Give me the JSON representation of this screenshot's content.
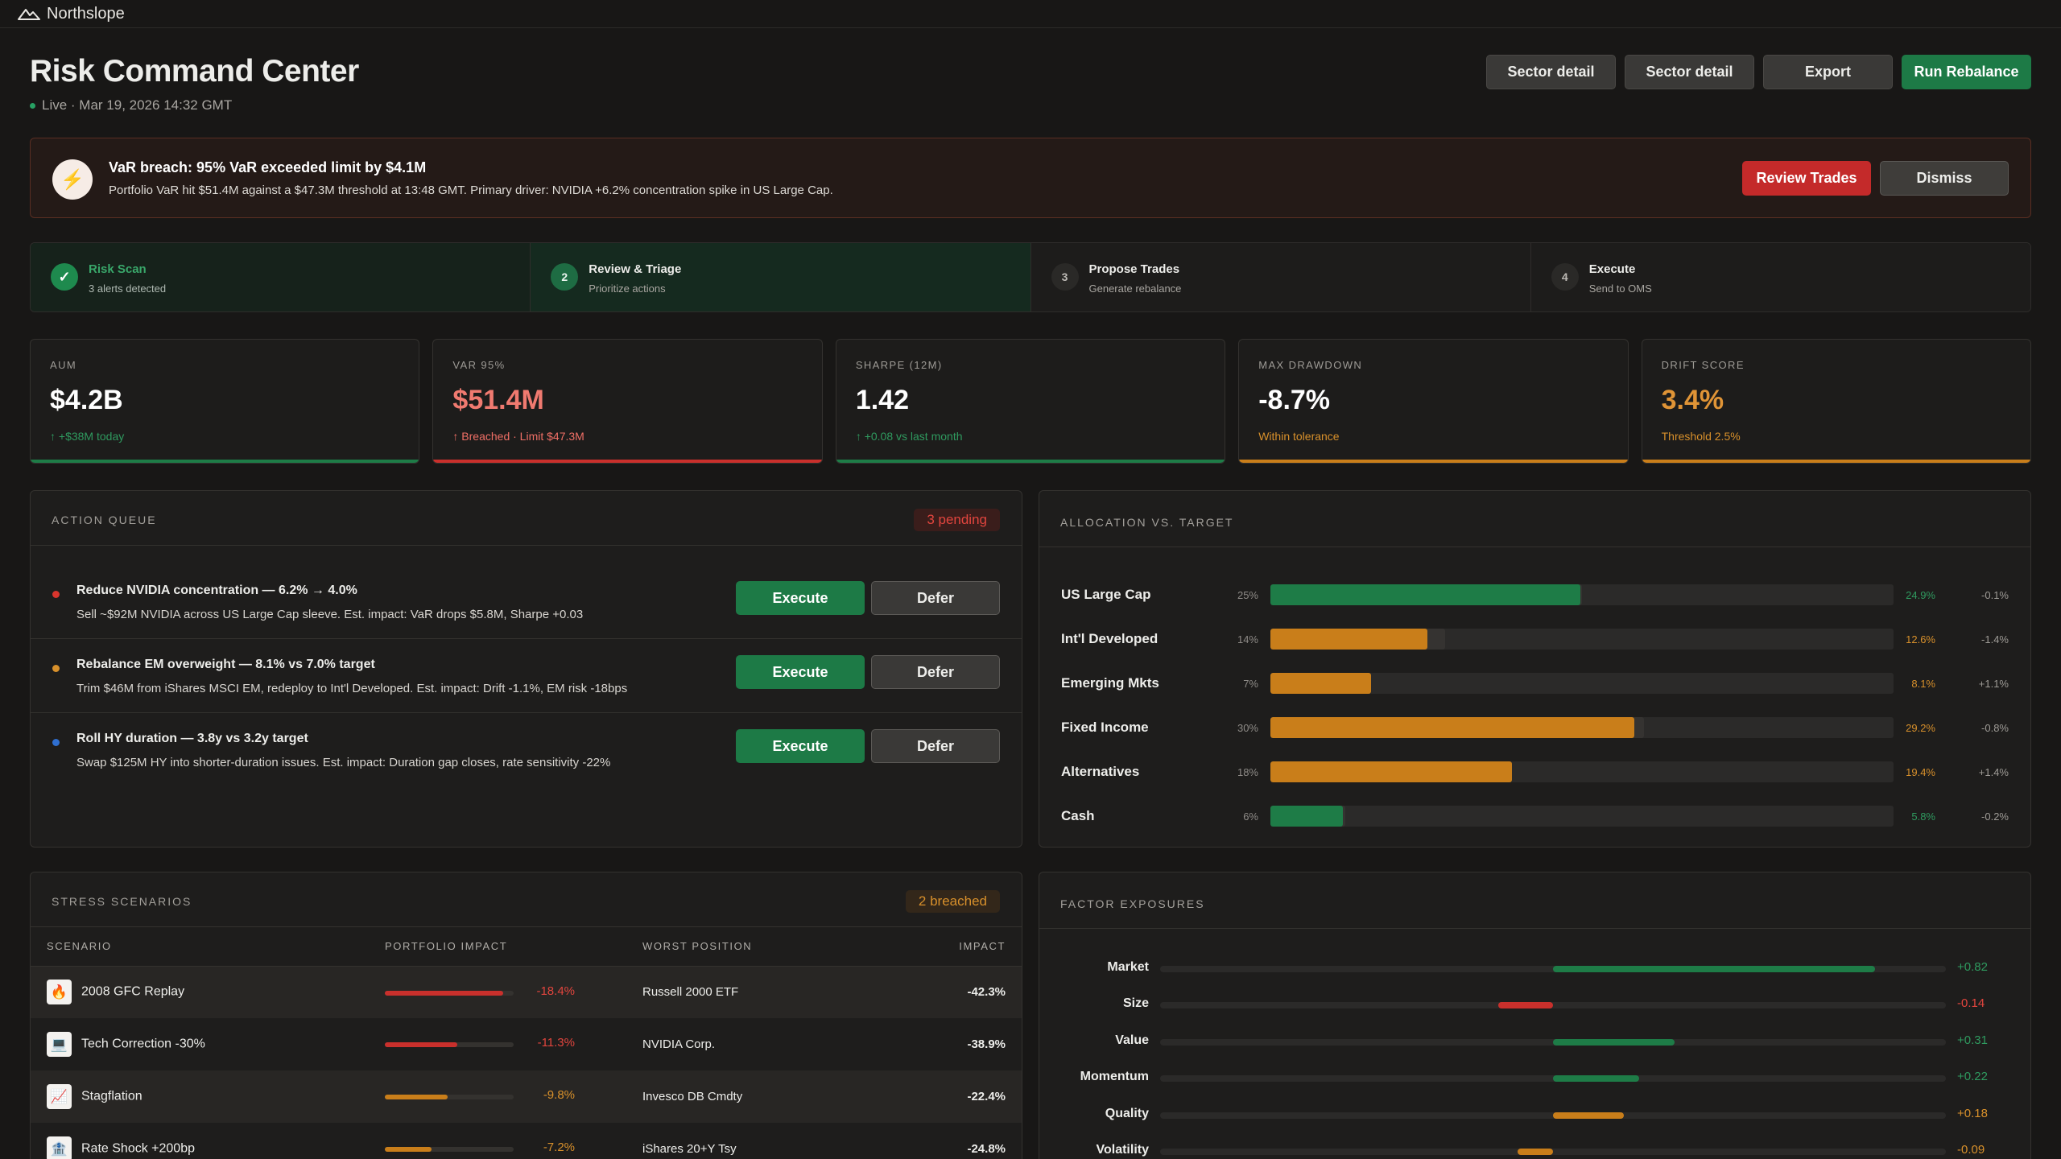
{
  "app": {
    "brand": "Northslope"
  },
  "header": {
    "title": "Risk Command Center",
    "subtitle": "Live · Mar 19, 2026 14:32 GMT",
    "buttons": {
      "sector_detail_1": "Sector detail",
      "sector_detail_2": "Sector detail",
      "export": "Export",
      "run_rebalance": "Run Rebalance"
    }
  },
  "alert": {
    "icon": "lightning-icon",
    "title": "VaR breach: 95% VaR exceeded limit by $4.1M",
    "text": "Portfolio VaR hit $51.4M against a $47.3M threshold at 13:48 GMT. Primary driver: NVIDIA +6.2% concentration spike in US Large Cap.",
    "review_label": "Review Trades",
    "dismiss_label": "Dismiss"
  },
  "steps": [
    {
      "marker": "✓",
      "title": "Risk Scan",
      "sub": "3 alerts detected",
      "state": "done"
    },
    {
      "marker": "2",
      "title": "Review & Triage",
      "sub": "Prioritize actions",
      "state": "active"
    },
    {
      "marker": "3",
      "title": "Propose Trades",
      "sub": "Generate rebalance",
      "state": "pending"
    },
    {
      "marker": "4",
      "title": "Execute",
      "sub": "Send to OMS",
      "state": "pending"
    }
  ],
  "kpis": [
    {
      "label": "AUM",
      "value": "$4.2B",
      "sub": "↑ +$38M today",
      "color": "#ffffff",
      "sub_color": "#2f9a5f",
      "bar_color": "#1e7c47"
    },
    {
      "label": "VAR 95%",
      "value": "$51.4M",
      "sub": "↑ Breached · Limit $47.3M",
      "color": "#f07a70",
      "sub_color": "#ef6f66",
      "bar_color": "#c9302c"
    },
    {
      "label": "SHARPE (12M)",
      "value": "1.42",
      "sub": "↑ +0.08 vs last month",
      "color": "#ffffff",
      "sub_color": "#2f9a5f",
      "bar_color": "#1e7c47"
    },
    {
      "label": "MAX DRAWDOWN",
      "value": "-8.7%",
      "sub": "Within tolerance",
      "color": "#ffffff",
      "sub_color": "#d8902b",
      "bar_color": "#c97e1a"
    },
    {
      "label": "DRIFT SCORE",
      "value": "3.4%",
      "sub": "Threshold 2.5%",
      "color": "#e09436",
      "sub_color": "#d8902b",
      "bar_color": "#c97e1a"
    }
  ],
  "action_queue": {
    "title": "ACTION QUEUE",
    "badge": "3 pending",
    "execute_label": "Execute",
    "defer_label": "Defer",
    "items": [
      {
        "title": "Reduce NVIDIA concentration — 6.2% → 4.0%",
        "desc": "Sell ~$92M NVIDIA across US Large Cap sleeve. Est. impact: VaR drops $5.8M, Sharpe +0.03",
        "dot": "#d9352d"
      },
      {
        "title": "Rebalance EM overweight — 8.1% vs 7.0% target",
        "desc": "Trim $46M from iShares MSCI EM, redeploy to Int'l Developed. Est. impact: Drift -1.1%, EM risk -18bps",
        "dot": "#d8902b"
      },
      {
        "title": "Roll HY duration — 3.8y vs 3.2y target",
        "desc": "Swap $125M HY into shorter-duration issues. Est. impact: Duration gap closes, rate sensitivity -22%",
        "dot": "#2f6fd0"
      }
    ]
  },
  "allocation": {
    "title": "ALLOCATION VS. TARGET",
    "rows": [
      {
        "name": "US Large Cap",
        "target": "25%",
        "target_value": 25,
        "actual": "24.9%",
        "actual_value": 24.9,
        "diff": "-0.1%",
        "color": "#1e7c47",
        "pct_color": "#2f9a5f"
      },
      {
        "name": "Int'l Developed",
        "target": "14%",
        "target_value": 14,
        "actual": "12.6%",
        "actual_value": 12.6,
        "diff": "-1.4%",
        "color": "#c97e1a",
        "pct_color": "#d8902b"
      },
      {
        "name": "Emerging Mkts",
        "target": "7%",
        "target_value": 7,
        "actual": "8.1%",
        "actual_value": 8.1,
        "diff": "+1.1%",
        "color": "#c97e1a",
        "pct_color": "#d8902b"
      },
      {
        "name": "Fixed Income",
        "target": "30%",
        "target_value": 30,
        "actual": "29.2%",
        "actual_value": 29.2,
        "diff": "-0.8%",
        "color": "#c97e1a",
        "pct_color": "#d8902b"
      },
      {
        "name": "Alternatives",
        "target": "18%",
        "target_value": 18,
        "actual": "19.4%",
        "actual_value": 19.4,
        "diff": "+1.4%",
        "color": "#c97e1a",
        "pct_color": "#d8902b"
      },
      {
        "name": "Cash",
        "target": "6%",
        "target_value": 6,
        "actual": "5.8%",
        "actual_value": 5.8,
        "diff": "-0.2%",
        "color": "#1e7c47",
        "pct_color": "#2f9a5f"
      }
    ]
  },
  "stress": {
    "title": "STRESS SCENARIOS",
    "badge": "2 breached",
    "columns": [
      "SCENARIO",
      "PORTFOLIO IMPACT",
      "WORST POSITION",
      "IMPACT"
    ],
    "rows": [
      {
        "icon": "🔥",
        "icon_name": "fire-icon",
        "scenario": "2008 GFC Replay",
        "impact": "-18.4%",
        "impact_value": 18.4,
        "worst": "Russell 2000 ETF",
        "worst_impact": "-42.3%",
        "color": "#c9302c",
        "num_color": "#e2453e"
      },
      {
        "icon": "💻",
        "icon_name": "laptop-icon",
        "scenario": "Tech Correction -30%",
        "impact": "-11.3%",
        "impact_value": 11.3,
        "worst": "NVIDIA Corp.",
        "worst_impact": "-38.9%",
        "color": "#c9302c",
        "num_color": "#e2453e"
      },
      {
        "icon": "📈",
        "icon_name": "chart-icon",
        "scenario": "Stagflation",
        "impact": "-9.8%",
        "impact_value": 9.8,
        "worst": "Invesco DB Cmdty",
        "worst_impact": "-22.4%",
        "color": "#c97e1a",
        "num_color": "#d8902b"
      },
      {
        "icon": "🏦",
        "icon_name": "bank-icon",
        "scenario": "Rate Shock +200bp",
        "impact": "-7.2%",
        "impact_value": 7.2,
        "worst": "iShares 20+Y Tsy",
        "worst_impact": "-24.8%",
        "color": "#c97e1a",
        "num_color": "#d8902b"
      }
    ]
  },
  "factors": {
    "title": "FACTOR EXPOSURES",
    "rows": [
      {
        "name": "Market",
        "value": 0.82,
        "label": "+0.82",
        "color": "#1e7c47",
        "text_color": "#2f9a5f"
      },
      {
        "name": "Size",
        "value": -0.14,
        "label": "-0.14",
        "color": "#c9302c",
        "text_color": "#e2453e"
      },
      {
        "name": "Value",
        "value": 0.31,
        "label": "+0.31",
        "color": "#1e7c47",
        "text_color": "#2f9a5f"
      },
      {
        "name": "Momentum",
        "value": 0.22,
        "label": "+0.22",
        "color": "#1e7c47",
        "text_color": "#2f9a5f"
      },
      {
        "name": "Quality",
        "value": 0.18,
        "label": "+0.18",
        "color": "#c97e1a",
        "text_color": "#d8902b"
      },
      {
        "name": "Volatility",
        "value": -0.09,
        "label": "-0.09",
        "color": "#c97e1a",
        "text_color": "#d8902b"
      }
    ]
  }
}
